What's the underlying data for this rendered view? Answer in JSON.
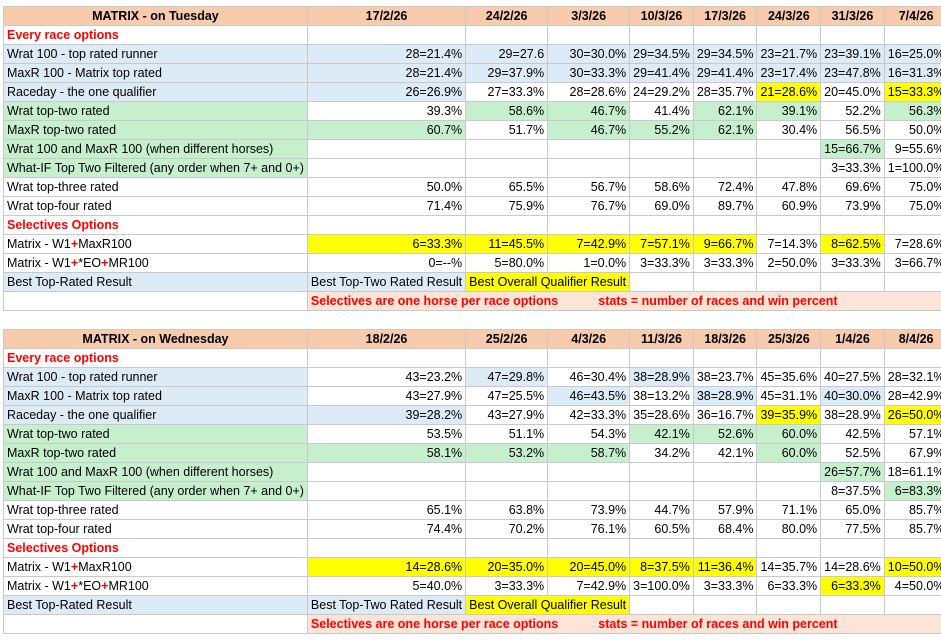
{
  "tuesday": {
    "title": "MATRIX - on Tuesday",
    "dates": [
      "17/2/26",
      "24/2/26",
      "3/3/26",
      "10/3/26",
      "17/3/26",
      "24/3/26",
      "31/3/26",
      "7/4/26"
    ],
    "every_race_heading": "Every race options",
    "rows": [
      {
        "label": "Wrat 100 - top rated runner",
        "label_bg": "blue",
        "values": [
          "28=21.4%",
          "29=27.6",
          "30=30.0%",
          "29=34.5%",
          "29=34.5%",
          "23=21.7%",
          "23=39.1%",
          "16=25.0%"
        ],
        "bg": [
          "blue",
          "blue",
          "blue",
          "blue",
          "blue",
          "blue",
          "blue",
          "blue"
        ]
      },
      {
        "label": "MaxR 100 - Matrix top rated",
        "label_bg": "blue",
        "values": [
          "28=21.4%",
          "29=37.9%",
          "30=33.3%",
          "29=41.4%",
          "29=41.4%",
          "23=17.4%",
          "23=47.8%",
          "16=31.3%"
        ],
        "bg": [
          "blue",
          "blue",
          "blue",
          "blue",
          "blue",
          "blue",
          "blue",
          "blue"
        ]
      },
      {
        "label": "Raceday - the one qualifier",
        "label_bg": "blue",
        "values": [
          "26=26.9%",
          "27=33.3%",
          "28=28.6%",
          "24=29.2%",
          "28=35.7%",
          "21=28.6%",
          "20=45.0%",
          "15=33.3%"
        ],
        "bg": [
          "blue",
          "white",
          "white",
          "white",
          "white",
          "yellow",
          "white",
          "yellow"
        ]
      },
      {
        "label": "Wrat top-two rated",
        "label_bg": "green",
        "values": [
          "39.3%",
          "58.6%",
          "46.7%",
          "41.4%",
          "62.1%",
          "39.1%",
          "52.2%",
          "56.3%"
        ],
        "bg": [
          "white",
          "green",
          "green",
          "white",
          "green",
          "green",
          "white",
          "green"
        ]
      },
      {
        "label": "MaxR top-two rated",
        "label_bg": "green",
        "values": [
          "60.7%",
          "51.7%",
          "46.7%",
          "55.2%",
          "62.1%",
          "30.4%",
          "56.5%",
          "50.0%"
        ],
        "bg": [
          "green",
          "white",
          "green",
          "green",
          "green",
          "white",
          "white",
          "white"
        ]
      },
      {
        "label": "Wrat 100 and MaxR 100 (when different horses)",
        "label_bg": "green",
        "values": [
          "",
          "",
          "",
          "",
          "",
          "",
          "15=66.7%",
          "9=55.6%"
        ],
        "bg": [
          "white",
          "white",
          "white",
          "white",
          "white",
          "white",
          "green",
          "white"
        ]
      },
      {
        "label": "What-IF Top Two Filtered (any order when 7+ and 0+)",
        "label_bg": "green",
        "values": [
          "",
          "",
          "",
          "",
          "",
          "",
          "3=33.3%",
          "1=100.0%"
        ],
        "bg": [
          "white",
          "white",
          "white",
          "white",
          "white",
          "white",
          "white",
          "white"
        ]
      },
      {
        "label": "Wrat top-three rated",
        "label_bg": "white",
        "values": [
          "50.0%",
          "65.5%",
          "56.7%",
          "58.6%",
          "72.4%",
          "47.8%",
          "69.6%",
          "75.0%"
        ],
        "bg": [
          "white",
          "white",
          "white",
          "white",
          "white",
          "white",
          "white",
          "white"
        ]
      },
      {
        "label": "Wrat top-four rated",
        "label_bg": "white",
        "values": [
          "71.4%",
          "75.9%",
          "76.7%",
          "69.0%",
          "89.7%",
          "60.9%",
          "73.9%",
          "75.0%"
        ],
        "bg": [
          "white",
          "white",
          "white",
          "white",
          "white",
          "white",
          "white",
          "white"
        ]
      }
    ],
    "selectives_heading": "Selectives Options",
    "selectives": [
      {
        "label_a": "Matrix - W1",
        "label_plus1": "+",
        "label_b": "MaxR100",
        "label_plus2": "",
        "label_c": "",
        "values": [
          "6=33.3%",
          "11=45.5%",
          "7=42.9%",
          "7=57.1%",
          "9=66.7%",
          "7=14.3%",
          "8=62.5%",
          "7=28.6%"
        ],
        "bg": [
          "yellow",
          "yellow",
          "yellow",
          "yellow",
          "yellow",
          "white",
          "yellow",
          "white"
        ]
      },
      {
        "label_a": "Matrix - W1",
        "label_plus1": "+",
        "label_b": "*EO",
        "label_plus2": "+",
        "label_c": "MR100",
        "values": [
          "0=--%",
          "5=80.0%",
          "1=0.0%",
          "3=33.3%",
          "3=33.3%",
          "2=50.0%",
          "3=33.3%",
          "3=66.7%"
        ],
        "bg": [
          "white",
          "white",
          "white",
          "white",
          "white",
          "white",
          "white",
          "white"
        ]
      }
    ],
    "best_label": "Best Top-Rated Result",
    "best_two": "Best Top-Two Rated Result",
    "best_overall": "Best Overall Qualifier Result",
    "note_left": "Selectives are one horse per race options",
    "note_right": "stats = number of races and win percent"
  },
  "wednesday": {
    "title": "MATRIX - on Wednesday",
    "dates": [
      "18/2/26",
      "25/2/26",
      "4/3/26",
      "11/3/26",
      "18/3/26",
      "25/3/26",
      "1/4/26",
      "8/4/26"
    ],
    "every_race_heading": "Every race options",
    "rows": [
      {
        "label": "Wrat 100 - top rated runner",
        "label_bg": "blue",
        "values": [
          "43=23.2%",
          "47=29.8%",
          "46=30.4%",
          "38=28.9%",
          "38=23.7%",
          "45=35.6%",
          "40=27.5%",
          "28=32.1%"
        ],
        "bg": [
          "white",
          "blue",
          "white",
          "blue",
          "white",
          "white",
          "white",
          "white"
        ]
      },
      {
        "label": "MaxR 100 - Matrix top rated",
        "label_bg": "blue",
        "values": [
          "43=27.9%",
          "47=25.5%",
          "46=43.5%",
          "38=13.2%",
          "38=28.9%",
          "45=31.1%",
          "40=30.0%",
          "28=42.9%"
        ],
        "bg": [
          "white",
          "white",
          "blue",
          "white",
          "blue",
          "white",
          "blue",
          "white"
        ]
      },
      {
        "label": "Raceday - the one qualifier",
        "label_bg": "blue",
        "values": [
          "39=28.2%",
          "43=27.9%",
          "42=33.3%",
          "35=28.6%",
          "36=16.7%",
          "39=35.9%",
          "38=28.9%",
          "26=50.0%"
        ],
        "bg": [
          "blue",
          "white",
          "white",
          "white",
          "white",
          "yellow",
          "white",
          "yellow"
        ]
      },
      {
        "label": "Wrat top-two rated",
        "label_bg": "green",
        "values": [
          "53.5%",
          "51.1%",
          "54.3%",
          "42.1%",
          "52.6%",
          "60.0%",
          "42.5%",
          "57.1%"
        ],
        "bg": [
          "white",
          "white",
          "white",
          "green",
          "green",
          "green",
          "white",
          "white"
        ]
      },
      {
        "label": "MaxR top-two rated",
        "label_bg": "green",
        "values": [
          "58.1%",
          "53.2%",
          "58.7%",
          "34.2%",
          "42.1%",
          "60.0%",
          "52.5%",
          "67.9%"
        ],
        "bg": [
          "green",
          "green",
          "green",
          "white",
          "white",
          "green",
          "white",
          "white"
        ]
      },
      {
        "label": "Wrat 100 and MaxR 100 (when different horses)",
        "label_bg": "green",
        "values": [
          "",
          "",
          "",
          "",
          "",
          "",
          "26=57.7%",
          "18=61.1%"
        ],
        "bg": [
          "white",
          "white",
          "white",
          "white",
          "white",
          "white",
          "green",
          "white"
        ]
      },
      {
        "label": "What-IF Top Two Filtered (any order when 7+ and 0+)",
        "label_bg": "green",
        "values": [
          "",
          "",
          "",
          "",
          "",
          "",
          "8=37.5%",
          "6=83.3%"
        ],
        "bg": [
          "white",
          "white",
          "white",
          "white",
          "white",
          "white",
          "white",
          "green"
        ]
      },
      {
        "label": "Wrat top-three rated",
        "label_bg": "white",
        "values": [
          "65.1%",
          "63.8%",
          "73.9%",
          "44.7%",
          "57.9%",
          "71.1%",
          "65.0%",
          "85.7%"
        ],
        "bg": [
          "white",
          "white",
          "white",
          "white",
          "white",
          "white",
          "white",
          "white"
        ]
      },
      {
        "label": "Wrat top-four rated",
        "label_bg": "white",
        "values": [
          "74.4%",
          "70.2%",
          "76.1%",
          "60.5%",
          "68.4%",
          "80.0%",
          "77.5%",
          "85.7%"
        ],
        "bg": [
          "white",
          "white",
          "white",
          "white",
          "white",
          "white",
          "white",
          "white"
        ]
      }
    ],
    "selectives_heading": "Selectives Options",
    "selectives": [
      {
        "label_a": "Matrix - W1",
        "label_plus1": "+",
        "label_b": "MaxR100",
        "label_plus2": "",
        "label_c": "",
        "values": [
          "14=28.6%",
          "20=35.0%",
          "20=45.0%",
          "8=37.5%",
          "11=36.4%",
          "14=35.7%",
          "14=28.6%",
          "10=50.0%"
        ],
        "bg": [
          "yellow",
          "yellow",
          "yellow",
          "yellow",
          "yellow",
          "white",
          "white",
          "yellow"
        ]
      },
      {
        "label_a": "Matrix - W1",
        "label_plus1": "+",
        "label_b": "*EO",
        "label_plus2": "+",
        "label_c": "MR100",
        "values": [
          "5=40.0%",
          "3=33.3%",
          "7=42.9%",
          "3=100.0%",
          "3=33.3%",
          "6=33.3%",
          "6=33.3%",
          "4=50.0%"
        ],
        "bg": [
          "white",
          "white",
          "white",
          "white",
          "white",
          "white",
          "yellow",
          "white"
        ]
      }
    ],
    "best_label": "Best Top-Rated Result",
    "best_two": "Best Top-Two Rated Result",
    "best_overall": "Best Overall Qualifier Result",
    "note_left": "Selectives are one horse per race options",
    "note_right": "stats = number of races and win percent"
  }
}
